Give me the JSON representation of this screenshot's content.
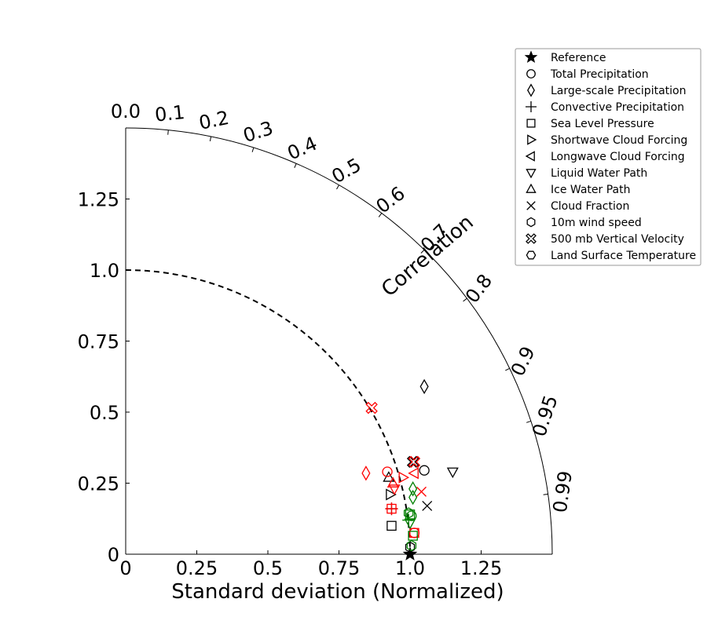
{
  "chart_data": {
    "type": "scatter",
    "subtype": "taylor-diagram",
    "xlabel": "Standard deviation (Normalized)",
    "corr_label": "Correlation",
    "std_ticks": [
      "0",
      "0.25",
      "0.5",
      "0.75",
      "1.0",
      "1.25"
    ],
    "std_tick_values": [
      0,
      0.25,
      0.5,
      0.75,
      1.0,
      1.25
    ],
    "corr_ticks": [
      "0.0",
      "0.1",
      "0.2",
      "0.3",
      "0.4",
      "0.5",
      "0.6",
      "0.7",
      "0.8",
      "0.9",
      "0.95",
      "0.99"
    ],
    "corr_tick_values": [
      0.0,
      0.1,
      0.2,
      0.3,
      0.4,
      0.5,
      0.6,
      0.7,
      0.8,
      0.9,
      0.95,
      0.99
    ],
    "std_max": 1.5,
    "reference_std": 1.0,
    "legend": [
      {
        "label": "Reference",
        "marker": "star"
      },
      {
        "label": "Total Precipitation",
        "marker": "circle"
      },
      {
        "label": "Large-scale Precipitation",
        "marker": "diamond"
      },
      {
        "label": "Convective Precipitation",
        "marker": "plus"
      },
      {
        "label": "Sea Level Pressure",
        "marker": "square"
      },
      {
        "label": "Shortwave Cloud Forcing",
        "marker": "triangle-right"
      },
      {
        "label": "Longwave Cloud Forcing",
        "marker": "triangle-left"
      },
      {
        "label": "Liquid Water Path",
        "marker": "triangle-down"
      },
      {
        "label": "Ice Water Path",
        "marker": "triangle-up"
      },
      {
        "label": "Cloud Fraction",
        "marker": "x"
      },
      {
        "label": "10m wind speed",
        "marker": "hexagon"
      },
      {
        "label": "500 mb Vertical Velocity",
        "marker": "x-filled"
      },
      {
        "label": "Land Surface Temperature",
        "marker": "hexagon-flat"
      }
    ],
    "colors": {
      "black": "#000000",
      "red": "#ff0000",
      "green": "#008000"
    },
    "points": [
      {
        "marker": "star",
        "color": "black",
        "x": 1.0,
        "y": 0.0
      },
      {
        "marker": "circle",
        "color": "black",
        "x": 1.05,
        "y": 0.295
      },
      {
        "marker": "diamond",
        "color": "black",
        "x": 1.05,
        "y": 0.59
      },
      {
        "marker": "triangle-down",
        "color": "black",
        "x": 1.15,
        "y": 0.29
      },
      {
        "marker": "x",
        "color": "black",
        "x": 1.06,
        "y": 0.17
      },
      {
        "marker": "x-filled",
        "color": "black",
        "x": 1.01,
        "y": 0.325
      },
      {
        "marker": "triangle-up",
        "color": "black",
        "x": 0.925,
        "y": 0.27
      },
      {
        "marker": "triangle-right",
        "color": "black",
        "x": 0.93,
        "y": 0.21
      },
      {
        "marker": "plus",
        "color": "black",
        "x": 0.935,
        "y": 0.16
      },
      {
        "marker": "square",
        "color": "black",
        "x": 0.935,
        "y": 0.1
      },
      {
        "marker": "hexagon",
        "color": "black",
        "x": 1.0,
        "y": 0.025
      },
      {
        "marker": "x-filled",
        "color": "red",
        "x": 0.865,
        "y": 0.515
      },
      {
        "marker": "diamond",
        "color": "red",
        "x": 0.845,
        "y": 0.285
      },
      {
        "marker": "circle",
        "color": "red",
        "x": 0.92,
        "y": 0.29
      },
      {
        "marker": "x-filled",
        "color": "red",
        "x": 1.015,
        "y": 0.325
      },
      {
        "marker": "triangle-left",
        "color": "red",
        "x": 1.015,
        "y": 0.285
      },
      {
        "marker": "triangle-right",
        "color": "red",
        "x": 0.975,
        "y": 0.27
      },
      {
        "marker": "triangle-up",
        "color": "red",
        "x": 0.94,
        "y": 0.25
      },
      {
        "marker": "triangle-down",
        "color": "red",
        "x": 0.945,
        "y": 0.23
      },
      {
        "marker": "x",
        "color": "red",
        "x": 1.04,
        "y": 0.22
      },
      {
        "marker": "plus",
        "color": "red",
        "x": 0.935,
        "y": 0.16
      },
      {
        "marker": "square",
        "color": "red",
        "x": 0.935,
        "y": 0.16
      },
      {
        "marker": "square",
        "color": "red",
        "x": 1.015,
        "y": 0.075
      },
      {
        "marker": "circle",
        "color": "red",
        "x": 1.015,
        "y": 0.075
      },
      {
        "marker": "diamond",
        "color": "green",
        "x": 1.01,
        "y": 0.23
      },
      {
        "marker": "diamond",
        "color": "green",
        "x": 1.01,
        "y": 0.2
      },
      {
        "marker": "hexagon",
        "color": "green",
        "x": 0.995,
        "y": 0.145
      },
      {
        "marker": "square",
        "color": "green",
        "x": 1.0,
        "y": 0.14
      },
      {
        "marker": "circle",
        "color": "green",
        "x": 1.005,
        "y": 0.135
      },
      {
        "marker": "plus",
        "color": "green",
        "x": 0.995,
        "y": 0.12
      },
      {
        "marker": "triangle-down",
        "color": "green",
        "x": 1.0,
        "y": 0.11
      },
      {
        "marker": "square",
        "color": "green",
        "x": 1.01,
        "y": 0.065
      },
      {
        "marker": "hexagon",
        "color": "green",
        "x": 1.005,
        "y": 0.03
      }
    ]
  }
}
